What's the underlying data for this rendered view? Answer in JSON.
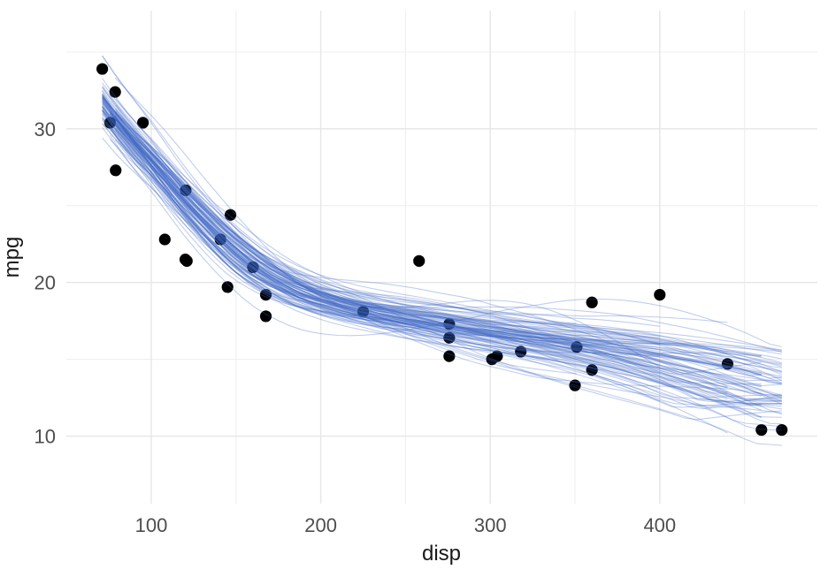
{
  "chart_data": {
    "type": "scatter",
    "title": "",
    "xlabel": "disp",
    "ylabel": "mpg",
    "x_ticks": [
      100,
      200,
      300,
      400
    ],
    "x_minor_ticks": [
      150,
      250,
      350,
      450
    ],
    "y_ticks": [
      10,
      20,
      30
    ],
    "y_minor_ticks": [
      15,
      25,
      35
    ],
    "xlim": [
      49.9,
      493.0
    ],
    "ylim": [
      5.6,
      37.7
    ],
    "grid": "on",
    "legend": "none",
    "points": [
      [
        160.0,
        21.0
      ],
      [
        160.0,
        21.0
      ],
      [
        108.0,
        22.8
      ],
      [
        258.0,
        21.4
      ],
      [
        360.0,
        18.7
      ],
      [
        225.0,
        18.1
      ],
      [
        360.0,
        14.3
      ],
      [
        146.7,
        24.4
      ],
      [
        140.8,
        22.8
      ],
      [
        167.6,
        19.2
      ],
      [
        167.6,
        17.8
      ],
      [
        275.8,
        16.4
      ],
      [
        275.8,
        17.3
      ],
      [
        275.8,
        15.2
      ],
      [
        472.0,
        10.4
      ],
      [
        460.0,
        10.4
      ],
      [
        440.0,
        14.7
      ],
      [
        78.7,
        32.4
      ],
      [
        75.7,
        30.4
      ],
      [
        71.1,
        33.9
      ],
      [
        120.1,
        21.5
      ],
      [
        318.0,
        15.5
      ],
      [
        304.0,
        15.2
      ],
      [
        350.0,
        13.3
      ],
      [
        400.0,
        19.2
      ],
      [
        79.0,
        27.3
      ],
      [
        120.3,
        26.0
      ],
      [
        95.1,
        30.4
      ],
      [
        351.0,
        15.8
      ],
      [
        145.0,
        19.7
      ],
      [
        301.0,
        15.0
      ],
      [
        121.0,
        21.4
      ]
    ],
    "smooth_ensemble": {
      "n_lines": 100,
      "description": "bootstrap smooth fits of mpg vs disp",
      "base_curve": {
        "disp": [
          71,
          80,
          90,
          100,
          110,
          120,
          132,
          145,
          160,
          175,
          190,
          210,
          230,
          250,
          270,
          290,
          310,
          330,
          350,
          375,
          400,
          425,
          450,
          472
        ],
        "mpg": [
          31.6,
          30.3,
          29.0,
          27.8,
          26.5,
          25.2,
          23.8,
          22.4,
          21.0,
          20.0,
          19.2,
          18.5,
          18.0,
          17.6,
          17.2,
          16.8,
          16.5,
          16.1,
          15.8,
          15.3,
          14.7,
          14.0,
          13.2,
          12.3
        ]
      },
      "start_disp_options": [
        71.1,
        75.7,
        78.7,
        79.0
      ],
      "end_disp_options": [
        472.0,
        460.0,
        440.0,
        400.0,
        351.0
      ]
    },
    "style": {
      "background": "#ffffff",
      "point_color": "#000000",
      "line_color": "#3d68c4",
      "line_opacity": 0.32,
      "grid_major_color": "#e6e6e6",
      "grid_minor_color": "#f0f0f0",
      "tick_label_color": "#4d4d4d",
      "axis_title_color": "#191919"
    }
  }
}
